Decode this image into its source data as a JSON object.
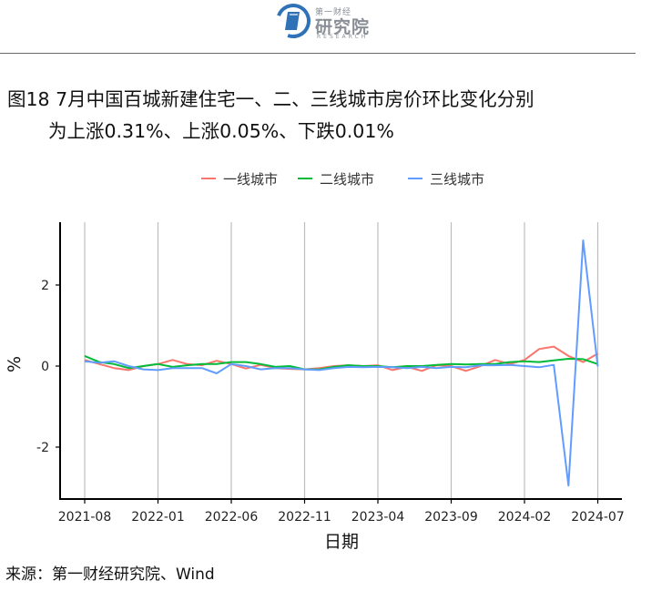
{
  "header": {
    "logo_top": "第一财经",
    "logo_main": "研究院",
    "logo_sub": "RESEARCH"
  },
  "title": {
    "line1": "图18 7月中国百城新建住宅一、二、三线城市房价环比变化分别",
    "line2": "为上涨0.31%、上涨0.05%、下跌0.01%"
  },
  "source": "来源：第一财经研究院、Wind",
  "chart_data": {
    "type": "line",
    "title": "",
    "xlabel": "日期",
    "ylabel": "%",
    "ylim": [
      -3.3,
      3.4
    ],
    "yticks": [
      -2,
      0,
      2
    ],
    "ytick_labels": [
      "-2",
      "0",
      "2"
    ],
    "xticks": [
      "2021-08",
      "2022-01",
      "2022-06",
      "2022-11",
      "2023-04",
      "2023-09",
      "2024-02",
      "2024-07"
    ],
    "grid": "vertical",
    "legend_position": "top",
    "x": [
      "2021-08",
      "2021-09",
      "2021-10",
      "2021-11",
      "2021-12",
      "2022-01",
      "2022-02",
      "2022-03",
      "2022-04",
      "2022-05",
      "2022-06",
      "2022-07",
      "2022-08",
      "2022-09",
      "2022-10",
      "2022-11",
      "2022-12",
      "2023-01",
      "2023-02",
      "2023-03",
      "2023-04",
      "2023-05",
      "2023-06",
      "2023-07",
      "2023-08",
      "2023-09",
      "2023-10",
      "2023-11",
      "2023-12",
      "2024-01",
      "2024-02",
      "2024-03",
      "2024-04",
      "2024-05",
      "2024-06",
      "2024-07"
    ],
    "series": [
      {
        "name": "一线城市",
        "color": "#F8766D",
        "values": [
          0.15,
          0.05,
          -0.05,
          -0.1,
          0.0,
          0.05,
          0.15,
          0.05,
          0.02,
          0.13,
          0.05,
          -0.06,
          0.03,
          -0.05,
          -0.07,
          -0.08,
          -0.05,
          0.0,
          0.02,
          0.0,
          0.02,
          -0.1,
          -0.02,
          -0.12,
          0.02,
          0.0,
          -0.12,
          0.0,
          0.15,
          0.05,
          0.15,
          0.42,
          0.48,
          0.25,
          0.1,
          0.31
        ]
      },
      {
        "name": "二线城市",
        "color": "#00BA38",
        "values": [
          0.25,
          0.1,
          0.05,
          -0.05,
          0.0,
          0.05,
          -0.02,
          0.02,
          0.05,
          0.05,
          0.1,
          0.1,
          0.05,
          -0.02,
          0.0,
          -0.08,
          -0.08,
          -0.02,
          0.02,
          0.0,
          0.0,
          -0.03,
          0.0,
          0.0,
          0.03,
          0.05,
          0.04,
          0.05,
          0.05,
          0.1,
          0.12,
          0.1,
          0.14,
          0.18,
          0.17,
          0.05
        ]
      },
      {
        "name": "三线城市",
        "color": "#619CFF",
        "values": [
          0.12,
          0.08,
          0.12,
          0.0,
          -0.08,
          -0.1,
          -0.05,
          -0.05,
          -0.05,
          -0.18,
          0.05,
          0.0,
          -0.08,
          -0.05,
          -0.05,
          -0.08,
          -0.1,
          -0.05,
          -0.02,
          -0.03,
          -0.02,
          -0.03,
          -0.05,
          -0.02,
          -0.05,
          -0.02,
          -0.03,
          0.02,
          0.02,
          0.03,
          0.0,
          -0.03,
          0.03,
          -2.95,
          3.1,
          -0.01
        ]
      }
    ]
  }
}
